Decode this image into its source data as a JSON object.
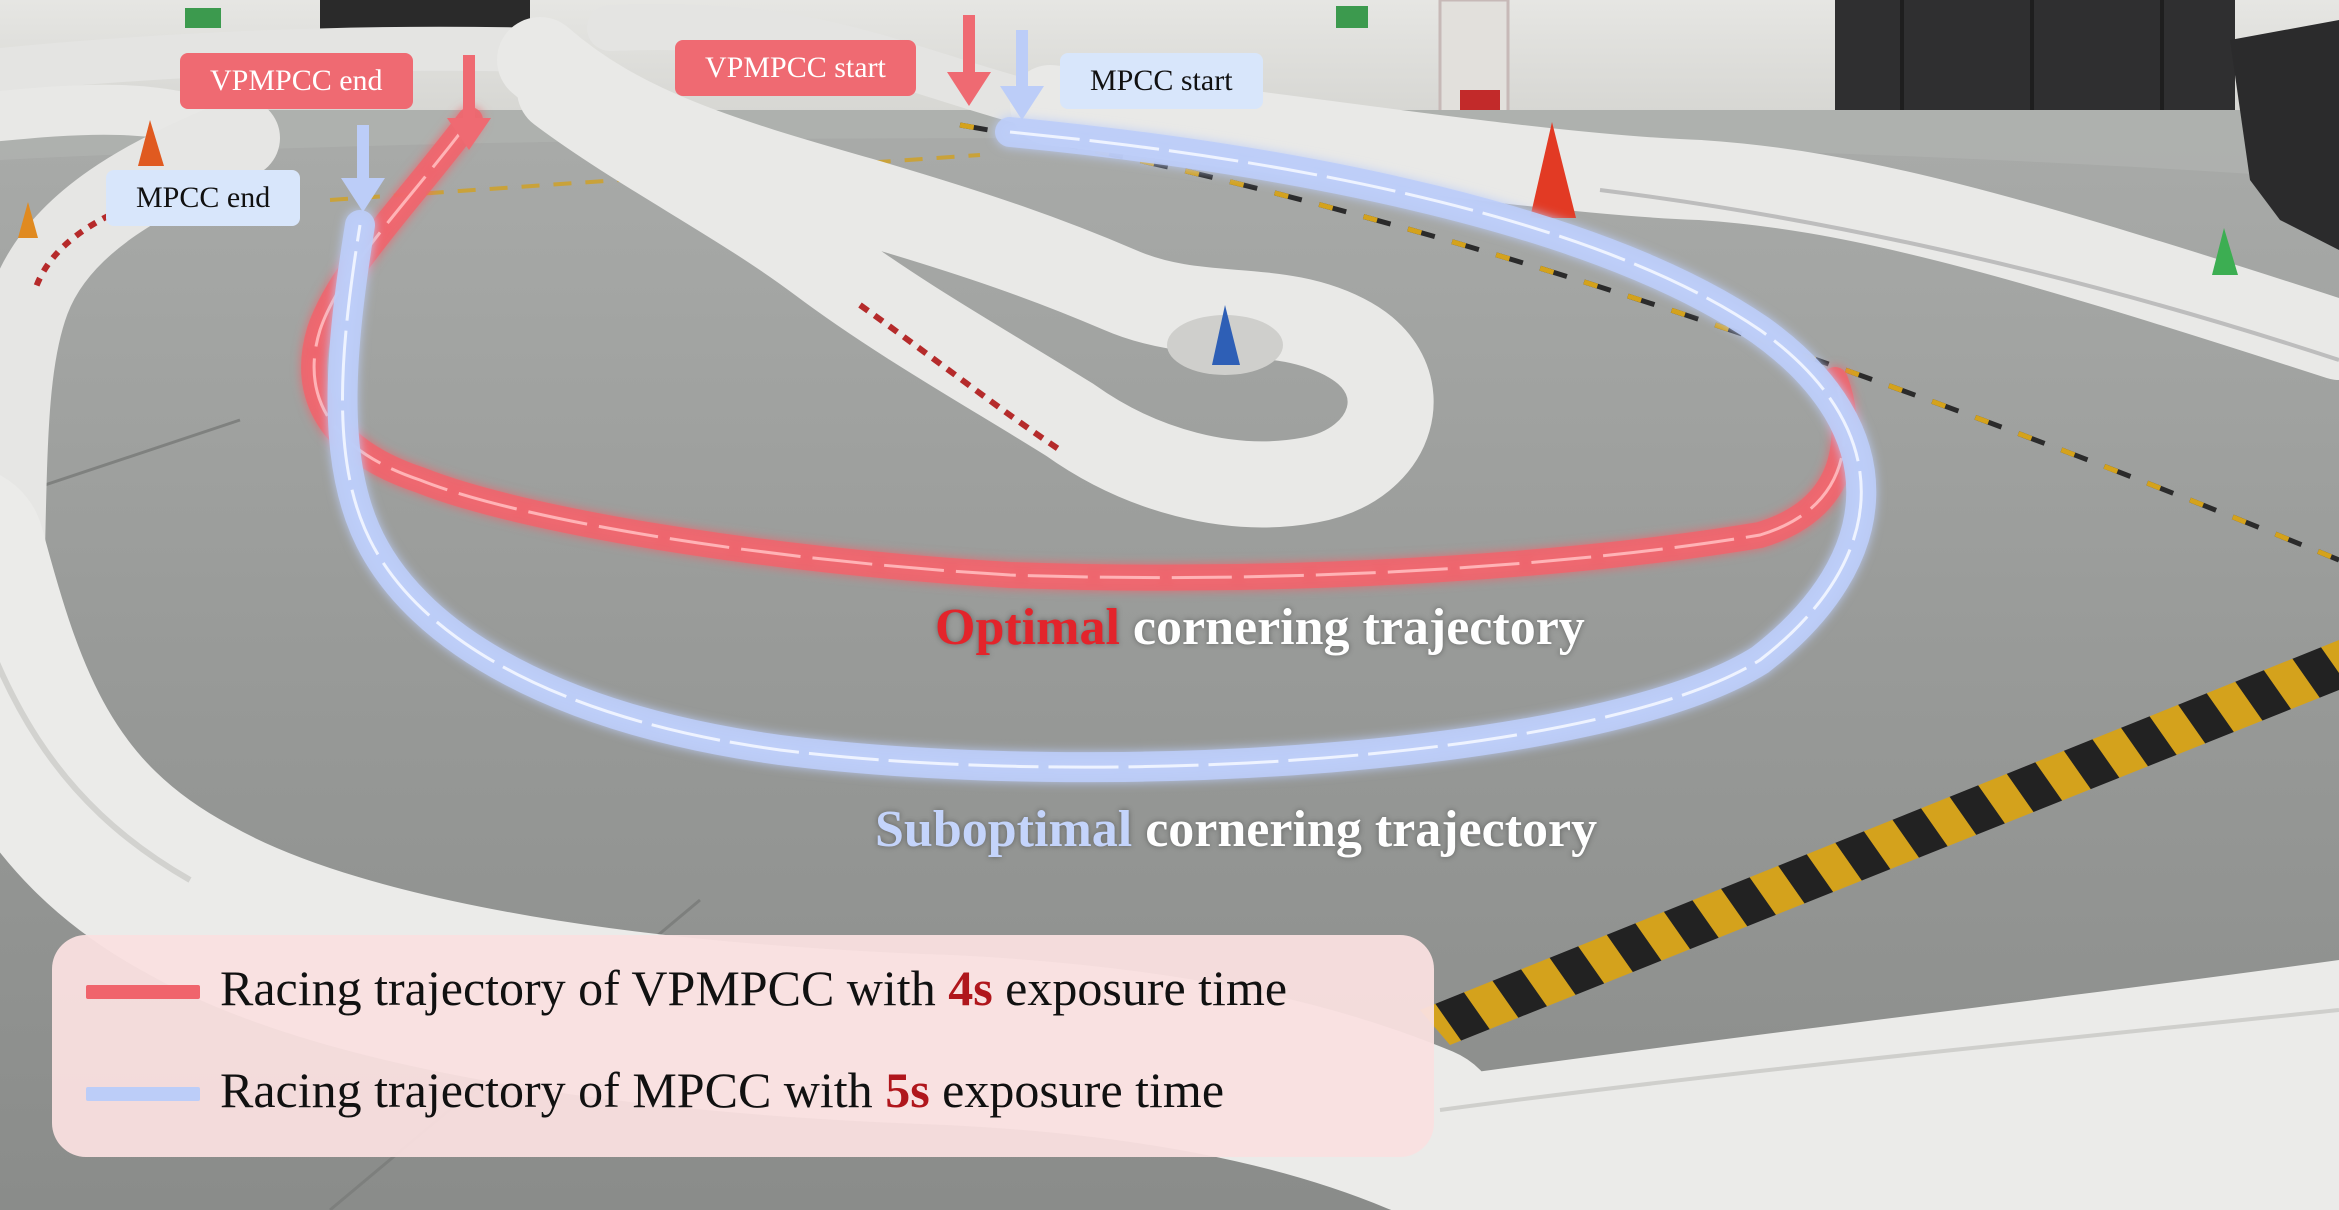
{
  "colors": {
    "vpmpcc": "#f0646c",
    "mpcc": "#bccdf8",
    "optimal_highlight": "#e3242b",
    "suboptimal_highlight": "#c4d4fb",
    "exposure_highlight": "#b0161c"
  },
  "markers": {
    "vpmpcc_end": "VPMPCC end",
    "vpmpcc_start": "VPMPCC start",
    "mpcc_end": "MPCC end",
    "mpcc_start": "MPCC start"
  },
  "captions": {
    "optimal_highlight": "Optimal",
    "optimal_rest": " cornering trajectory",
    "suboptimal_highlight": "Suboptimal",
    "suboptimal_rest": " cornering trajectory"
  },
  "legend": {
    "vpmpcc": {
      "prefix": "Racing trajectory of VPMPCC with ",
      "value": "4s",
      "suffix": " exposure time"
    },
    "mpcc": {
      "prefix": "Racing trajectory of MPCC with ",
      "value": "5s",
      "suffix": " exposure time"
    }
  }
}
